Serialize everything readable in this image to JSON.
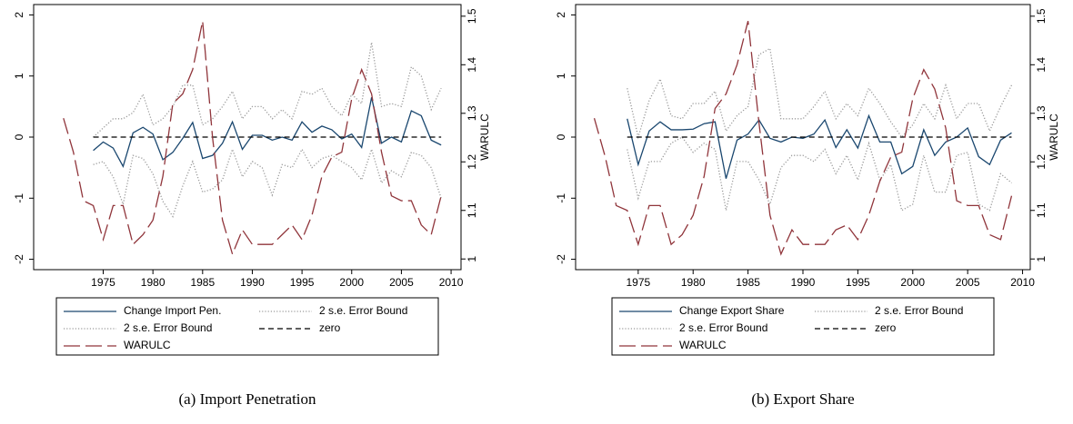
{
  "chart_data": [
    {
      "type": "line",
      "caption": "(a) Import Penetration",
      "xlim": [
        1968,
        2011
      ],
      "xticks": [
        1975,
        1980,
        1985,
        1990,
        1995,
        2000,
        2005,
        2010
      ],
      "ylim": [
        -2.17,
        2.17
      ],
      "yticks": [
        -2,
        -1,
        0,
        1,
        2
      ],
      "y2lim": [
        0.978,
        1.524
      ],
      "y2ticks": [
        1,
        1.1,
        1.2,
        1.3,
        1.4,
        1.5
      ],
      "y2label": "WARULC",
      "series": [
        {
          "name": "Change Import Pen.",
          "color": "#1a476f",
          "style": "solid",
          "x": [
            1974,
            1975,
            1976,
            1977,
            1978,
            1979,
            1980,
            1981,
            1982,
            1983,
            1984,
            1985,
            1986,
            1987,
            1988,
            1989,
            1990,
            1991,
            1992,
            1993,
            1994,
            1995,
            1996,
            1997,
            1998,
            1999,
            2000,
            2001,
            2002,
            2003,
            2004,
            2005,
            2006,
            2007,
            2008,
            2009
          ],
          "values": [
            -0.22,
            -0.08,
            -0.18,
            -0.48,
            0.07,
            0.16,
            0.05,
            -0.37,
            -0.25,
            -0.02,
            0.24,
            -0.35,
            -0.3,
            -0.1,
            0.25,
            -0.2,
            0.03,
            0.03,
            -0.05,
            0.0,
            -0.05,
            0.25,
            0.08,
            0.18,
            0.12,
            -0.03,
            0.05,
            -0.17,
            0.65,
            -0.1,
            0.0,
            -0.08,
            0.43,
            0.35,
            -0.05,
            -0.13
          ]
        },
        {
          "name": "2 s.e. Error Bound",
          "color": "#9a9a9a",
          "style": "dotted",
          "x": [
            1974,
            1975,
            1976,
            1977,
            1978,
            1979,
            1980,
            1981,
            1982,
            1983,
            1984,
            1985,
            1986,
            1987,
            1988,
            1989,
            1990,
            1991,
            1992,
            1993,
            1994,
            1995,
            1996,
            1997,
            1998,
            1999,
            2000,
            2001,
            2002,
            2003,
            2004,
            2005,
            2006,
            2007,
            2008,
            2009
          ],
          "values": [
            0.0,
            0.15,
            0.3,
            0.3,
            0.4,
            0.7,
            0.2,
            0.3,
            0.5,
            0.85,
            0.85,
            0.2,
            0.3,
            0.5,
            0.75,
            0.3,
            0.5,
            0.5,
            0.3,
            0.45,
            0.3,
            0.75,
            0.7,
            0.8,
            0.5,
            0.35,
            0.7,
            0.55,
            1.55,
            0.5,
            0.55,
            0.5,
            1.15,
            1.0,
            0.45,
            0.8
          ]
        },
        {
          "name": "2 s.e. Error Bound",
          "color": "#9a9a9a",
          "style": "dotted",
          "x": [
            1974,
            1975,
            1976,
            1977,
            1978,
            1979,
            1980,
            1981,
            1982,
            1983,
            1984,
            1985,
            1986,
            1987,
            1988,
            1989,
            1990,
            1991,
            1992,
            1993,
            1994,
            1995,
            1996,
            1997,
            1998,
            1999,
            2000,
            2001,
            2002,
            2003,
            2004,
            2005,
            2006,
            2007,
            2008,
            2009
          ],
          "values": [
            -0.45,
            -0.4,
            -0.65,
            -1.1,
            -0.3,
            -0.35,
            -0.6,
            -1.05,
            -1.3,
            -0.8,
            -0.4,
            -0.9,
            -0.85,
            -0.7,
            -0.2,
            -0.65,
            -0.4,
            -0.5,
            -0.95,
            -0.45,
            -0.5,
            -0.2,
            -0.5,
            -0.35,
            -0.3,
            -0.4,
            -0.5,
            -0.7,
            -0.2,
            -0.75,
            -0.55,
            -0.65,
            -0.25,
            -0.3,
            -0.5,
            -1.0
          ]
        },
        {
          "name": "zero",
          "color": "#000000",
          "style": "dashed",
          "x": [
            1974,
            1975,
            1976,
            1977,
            1978,
            1979,
            1980,
            1981,
            1982,
            1983,
            1984,
            1985,
            1986,
            1987,
            1988,
            1989,
            1990,
            1991,
            1992,
            1993,
            1994,
            1995,
            1996,
            1997,
            1998,
            1999,
            2000,
            2001,
            2002,
            2003,
            2004,
            2005,
            2006,
            2007,
            2008,
            2009
          ],
          "values": [
            0,
            0,
            0,
            0,
            0,
            0,
            0,
            0,
            0,
            0,
            0,
            0,
            0,
            0,
            0,
            0,
            0,
            0,
            0,
            0,
            0,
            0,
            0,
            0,
            0,
            0,
            0,
            0,
            0,
            0,
            0,
            0,
            0,
            0,
            0,
            0
          ]
        },
        {
          "name": "WARULC",
          "color": "#90353b",
          "style": "longdash",
          "axis": "y2",
          "x": [
            1971,
            1972,
            1973,
            1974,
            1975,
            1976,
            1977,
            1978,
            1979,
            1980,
            1981,
            1982,
            1983,
            1984,
            1985,
            1986,
            1987,
            1988,
            1989,
            1990,
            1991,
            1992,
            1993,
            1994,
            1995,
            1996,
            1997,
            1998,
            1999,
            2000,
            2001,
            2002,
            2003,
            2004,
            2005,
            2006,
            2007,
            2008,
            2009
          ],
          "values": [
            1.29,
            1.22,
            1.12,
            1.11,
            1.04,
            1.11,
            1.11,
            1.03,
            1.05,
            1.08,
            1.17,
            1.32,
            1.34,
            1.39,
            1.49,
            1.25,
            1.08,
            1.01,
            1.06,
            1.03,
            1.03,
            1.03,
            1.05,
            1.07,
            1.04,
            1.09,
            1.17,
            1.21,
            1.22,
            1.33,
            1.39,
            1.34,
            1.22,
            1.13,
            1.12,
            1.12,
            1.07,
            1.05,
            1.13
          ]
        }
      ]
    },
    {
      "type": "line",
      "caption": "(b) Export Share",
      "xlim": [
        1969.3,
        2010.7
      ],
      "xticks": [
        1975,
        1980,
        1985,
        1990,
        1995,
        2000,
        2005,
        2010
      ],
      "ylim": [
        -2.17,
        2.17
      ],
      "yticks": [
        -2,
        -1,
        0,
        1,
        2
      ],
      "y2lim": [
        0.978,
        1.524
      ],
      "y2ticks": [
        1,
        1.1,
        1.2,
        1.3,
        1.4,
        1.5
      ],
      "y2label": "WARULC",
      "series": [
        {
          "name": "Change Export Share",
          "color": "#1a476f",
          "style": "solid",
          "x": [
            1974,
            1975,
            1976,
            1977,
            1978,
            1979,
            1980,
            1981,
            1982,
            1983,
            1984,
            1985,
            1986,
            1987,
            1988,
            1989,
            1990,
            1991,
            1992,
            1993,
            1994,
            1995,
            1996,
            1997,
            1998,
            1999,
            2000,
            2001,
            2002,
            2003,
            2004,
            2005,
            2006,
            2007,
            2008,
            2009
          ],
          "values": [
            0.3,
            -0.45,
            0.1,
            0.25,
            0.12,
            0.12,
            0.13,
            0.22,
            0.25,
            -0.68,
            -0.05,
            0.05,
            0.28,
            -0.02,
            -0.08,
            0.0,
            -0.02,
            0.05,
            0.28,
            -0.17,
            0.12,
            -0.18,
            0.35,
            -0.08,
            -0.08,
            -0.6,
            -0.48,
            0.12,
            -0.3,
            -0.08,
            0.0,
            0.15,
            -0.32,
            -0.45,
            -0.05,
            0.07
          ]
        },
        {
          "name": "2 s.e. Error Bound",
          "color": "#9a9a9a",
          "style": "dotted",
          "x": [
            1974,
            1975,
            1976,
            1977,
            1978,
            1979,
            1980,
            1981,
            1982,
            1983,
            1984,
            1985,
            1986,
            1987,
            1988,
            1989,
            1990,
            1991,
            1992,
            1993,
            1994,
            1995,
            1996,
            1997,
            1998,
            1999,
            2000,
            2001,
            2002,
            2003,
            2004,
            2005,
            2006,
            2007,
            2008,
            2009
          ],
          "values": [
            0.8,
            0.0,
            0.6,
            0.95,
            0.35,
            0.3,
            0.55,
            0.55,
            0.75,
            0.1,
            0.35,
            0.5,
            1.35,
            1.45,
            0.3,
            0.3,
            0.3,
            0.5,
            0.75,
            0.3,
            0.55,
            0.35,
            0.8,
            0.55,
            0.25,
            0.0,
            0.2,
            0.55,
            0.3,
            0.85,
            0.3,
            0.55,
            0.55,
            0.1,
            0.5,
            0.85
          ]
        },
        {
          "name": "2 s.e. Error Bound",
          "color": "#9a9a9a",
          "style": "dotted",
          "x": [
            1974,
            1975,
            1976,
            1977,
            1978,
            1979,
            1980,
            1981,
            1982,
            1983,
            1984,
            1985,
            1986,
            1987,
            1988,
            1989,
            1990,
            1991,
            1992,
            1993,
            1994,
            1995,
            1996,
            1997,
            1998,
            1999,
            2000,
            2001,
            2002,
            2003,
            2004,
            2005,
            2006,
            2007,
            2008,
            2009
          ],
          "values": [
            -0.2,
            -1.0,
            -0.4,
            -0.4,
            -0.1,
            0.0,
            -0.25,
            -0.1,
            -0.2,
            -1.2,
            -0.4,
            -0.4,
            -0.7,
            -1.1,
            -0.5,
            -0.3,
            -0.3,
            -0.4,
            -0.2,
            -0.6,
            -0.3,
            -0.7,
            -0.1,
            -0.7,
            -0.45,
            -1.2,
            -1.1,
            -0.3,
            -0.9,
            -0.9,
            -0.3,
            -0.25,
            -1.1,
            -1.2,
            -0.6,
            -0.75
          ]
        },
        {
          "name": "zero",
          "color": "#000000",
          "style": "dashed",
          "x": [
            1974,
            1975,
            1976,
            1977,
            1978,
            1979,
            1980,
            1981,
            1982,
            1983,
            1984,
            1985,
            1986,
            1987,
            1988,
            1989,
            1990,
            1991,
            1992,
            1993,
            1994,
            1995,
            1996,
            1997,
            1998,
            1999,
            2000,
            2001,
            2002,
            2003,
            2004,
            2005,
            2006,
            2007,
            2008,
            2009
          ],
          "values": [
            0,
            0,
            0,
            0,
            0,
            0,
            0,
            0,
            0,
            0,
            0,
            0,
            0,
            0,
            0,
            0,
            0,
            0,
            0,
            0,
            0,
            0,
            0,
            0,
            0,
            0,
            0,
            0,
            0,
            0,
            0,
            0,
            0,
            0,
            0,
            0
          ]
        },
        {
          "name": "WARULC",
          "color": "#90353b",
          "style": "longdash",
          "axis": "y2",
          "x": [
            1971,
            1972,
            1973,
            1974,
            1975,
            1976,
            1977,
            1978,
            1979,
            1980,
            1981,
            1982,
            1983,
            1984,
            1985,
            1986,
            1987,
            1988,
            1989,
            1990,
            1991,
            1992,
            1993,
            1994,
            1995,
            1996,
            1997,
            1998,
            1999,
            2000,
            2001,
            2002,
            2003,
            2004,
            2005,
            2006,
            2007,
            2008,
            2009
          ],
          "values": [
            1.29,
            1.21,
            1.11,
            1.1,
            1.03,
            1.11,
            1.11,
            1.03,
            1.05,
            1.09,
            1.17,
            1.31,
            1.34,
            1.4,
            1.49,
            1.28,
            1.09,
            1.01,
            1.06,
            1.03,
            1.03,
            1.03,
            1.06,
            1.07,
            1.04,
            1.09,
            1.16,
            1.21,
            1.22,
            1.33,
            1.39,
            1.35,
            1.27,
            1.12,
            1.11,
            1.11,
            1.05,
            1.04,
            1.13
          ]
        }
      ]
    }
  ]
}
